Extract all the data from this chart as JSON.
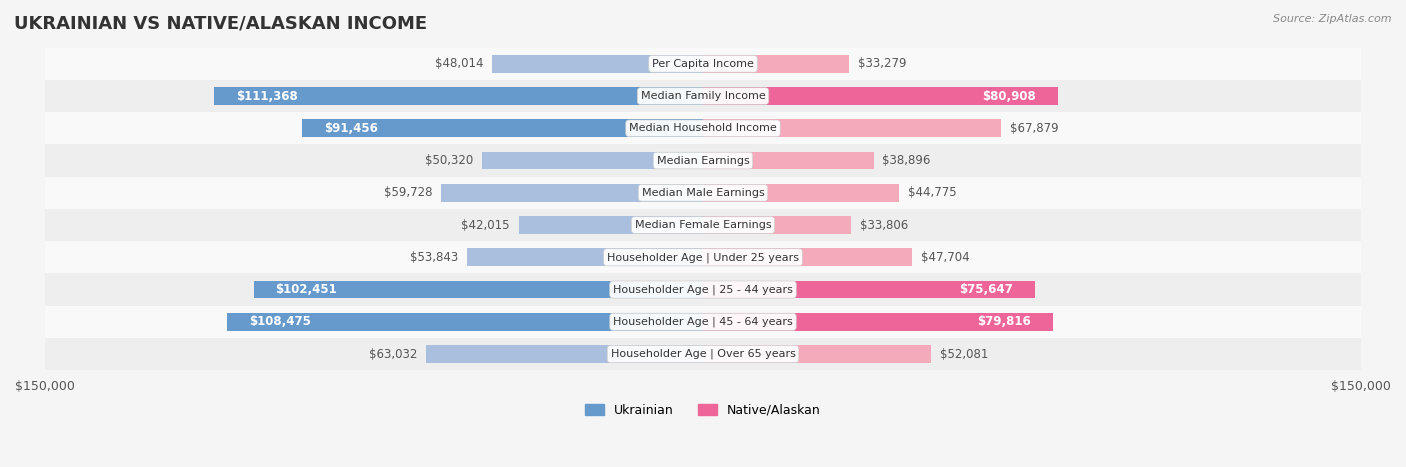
{
  "title": "UKRAINIAN VS NATIVE/ALASKAN INCOME",
  "source": "Source: ZipAtlas.com",
  "categories": [
    "Per Capita Income",
    "Median Family Income",
    "Median Household Income",
    "Median Earnings",
    "Median Male Earnings",
    "Median Female Earnings",
    "Householder Age | Under 25 years",
    "Householder Age | 25 - 44 years",
    "Householder Age | 45 - 64 years",
    "Householder Age | Over 65 years"
  ],
  "ukrainian_values": [
    48014,
    111368,
    91456,
    50320,
    59728,
    42015,
    53843,
    102451,
    108475,
    63032
  ],
  "native_values": [
    33279,
    80908,
    67879,
    38896,
    44775,
    33806,
    47704,
    75647,
    79816,
    52081
  ],
  "ukrainian_labels": [
    "$48,014",
    "$111,368",
    "$91,456",
    "$50,320",
    "$59,728",
    "$42,015",
    "$53,843",
    "$102,451",
    "$108,475",
    "$63,032"
  ],
  "native_labels": [
    "$33,279",
    "$80,908",
    "$67,879",
    "$38,896",
    "$44,775",
    "$33,806",
    "$47,704",
    "$75,647",
    "$79,816",
    "$52,081"
  ],
  "ukrainian_color_dark": "#6699CC",
  "ukrainian_color_light": "#AABFDD",
  "native_color_dark": "#EE6699",
  "native_color_light": "#F4AABB",
  "max_value": 150000,
  "background_color": "#f5f5f5",
  "row_bg_light": "#f9f9f9",
  "row_bg_dark": "#eeeeee",
  "legend_ukrainian": "Ukrainian",
  "legend_native": "Native/Alaskan"
}
